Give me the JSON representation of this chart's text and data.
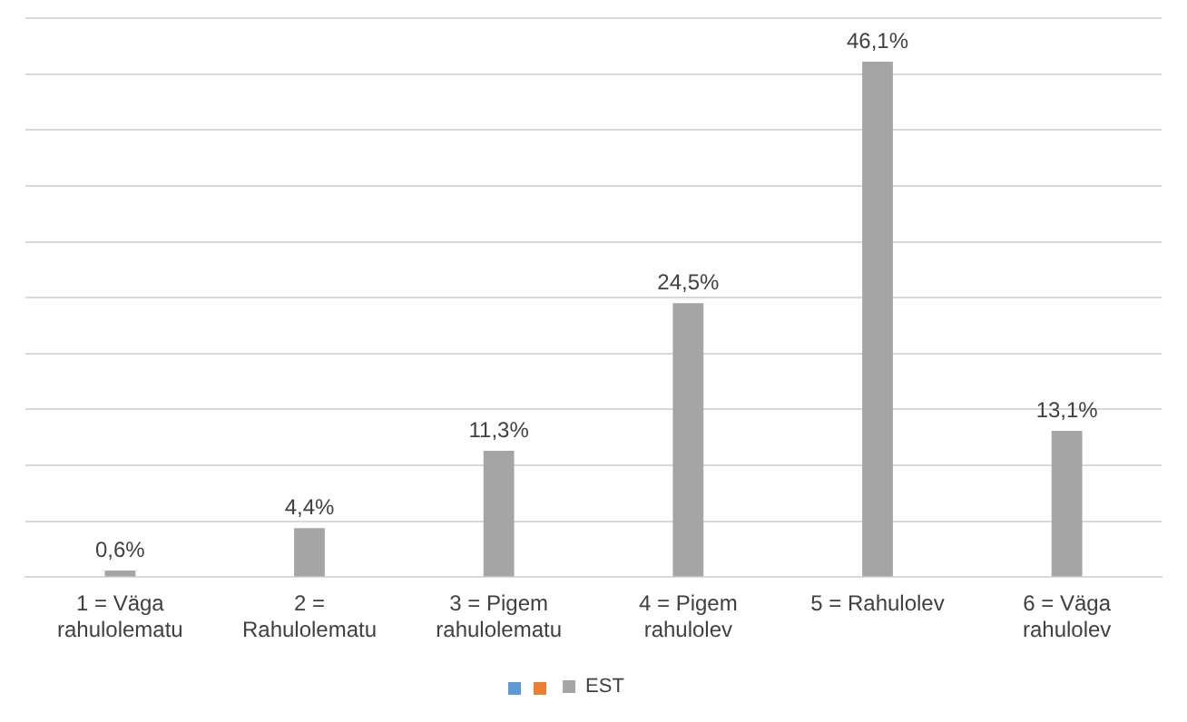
{
  "chart_data": {
    "type": "bar",
    "categories": [
      "1 = Väga rahulolematu",
      "2 = Rahulolematu",
      "3 = Pigem rahulolematu",
      "4 = Pigem rahulolev",
      "5 = Rahulolev",
      "6 = Väga rahulolev"
    ],
    "series": [
      {
        "name": "EST",
        "color": "#a5a5a5",
        "values": [
          0.6,
          4.4,
          11.3,
          24.5,
          46.1,
          13.1
        ],
        "value_labels": [
          "0,6%",
          "4,4%",
          "11,3%",
          "24,5%",
          "46,1%",
          "13,1%"
        ]
      }
    ],
    "ylim": [
      0,
      50
    ],
    "yticks": [
      {
        "value": 0,
        "label": null
      },
      {
        "value": 5,
        "label": null
      },
      {
        "value": 10,
        "label": null
      },
      {
        "value": 15,
        "label": null
      },
      {
        "value": 20,
        "label": null
      },
      {
        "value": 25,
        "label": null
      },
      {
        "value": 30,
        "label": null
      },
      {
        "value": 35,
        "label": null
      },
      {
        "value": 40,
        "label": null
      },
      {
        "value": 45,
        "label": null
      },
      {
        "value": 50,
        "label": null
      }
    ],
    "grid": "y",
    "legend": "bottom",
    "tick_labels": "x"
  }
}
